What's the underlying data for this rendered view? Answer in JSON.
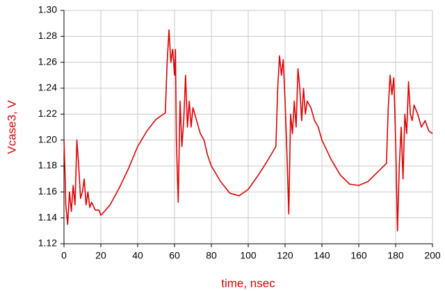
{
  "chart_data": {
    "type": "line",
    "y_label": "Vcase3, V",
    "x_label": "time, nsec",
    "xlim": [
      0,
      200
    ],
    "xticks": [
      0,
      20,
      40,
      60,
      80,
      100,
      120,
      140,
      160,
      180,
      200
    ],
    "ylim": [
      1.12,
      1.3
    ],
    "yticks": [
      1.12,
      1.14,
      1.16,
      1.18,
      {
        "value": 1.2,
        "label": "1.20"
      },
      1.22,
      1.24,
      1.26,
      1.28,
      {
        "value": 1.3,
        "label": "1.30"
      }
    ],
    "grid": true,
    "series": [
      {
        "color": "#e00000",
        "x": [
          0,
          0.5,
          1,
          2,
          3,
          4,
          5,
          6,
          7,
          8,
          9,
          10,
          11,
          12,
          13,
          14,
          15,
          17,
          19,
          20,
          22,
          25,
          30,
          35,
          40,
          45,
          50,
          55,
          56,
          57,
          58,
          59,
          60,
          60.5,
          61,
          62,
          63,
          64,
          65,
          66,
          67,
          68,
          69,
          70,
          72,
          74,
          76,
          78,
          80,
          85,
          90,
          95,
          100,
          105,
          110,
          115,
          116,
          117,
          118,
          119,
          120,
          121,
          122,
          123,
          124,
          125,
          126,
          127,
          128,
          129,
          130,
          131,
          132,
          134,
          136,
          138,
          140,
          145,
          150,
          155,
          160,
          165,
          170,
          175,
          176,
          177,
          178,
          179,
          180,
          181,
          182,
          183,
          184,
          185,
          186,
          187,
          188,
          189,
          190,
          192,
          194,
          196,
          198,
          200
        ],
        "values": [
          1.2,
          1.178,
          1.15,
          1.135,
          1.16,
          1.145,
          1.165,
          1.15,
          1.2,
          1.18,
          1.155,
          1.16,
          1.17,
          1.15,
          1.16,
          1.148,
          1.152,
          1.146,
          1.146,
          1.142,
          1.145,
          1.15,
          1.163,
          1.178,
          1.195,
          1.207,
          1.216,
          1.221,
          1.26,
          1.285,
          1.26,
          1.27,
          1.25,
          1.27,
          1.2,
          1.152,
          1.23,
          1.195,
          1.215,
          1.25,
          1.21,
          1.23,
          1.21,
          1.225,
          1.215,
          1.205,
          1.2,
          1.188,
          1.18,
          1.168,
          1.159,
          1.157,
          1.162,
          1.172,
          1.183,
          1.195,
          1.24,
          1.265,
          1.25,
          1.262,
          1.23,
          1.19,
          1.143,
          1.22,
          1.205,
          1.23,
          1.21,
          1.255,
          1.24,
          1.215,
          1.24,
          1.22,
          1.23,
          1.225,
          1.215,
          1.21,
          1.2,
          1.185,
          1.173,
          1.166,
          1.165,
          1.168,
          1.175,
          1.182,
          1.225,
          1.25,
          1.235,
          1.248,
          1.2,
          1.13,
          1.18,
          1.21,
          1.17,
          1.22,
          1.205,
          1.245,
          1.22,
          1.215,
          1.227,
          1.22,
          1.21,
          1.215,
          1.207,
          1.205
        ]
      }
    ]
  }
}
